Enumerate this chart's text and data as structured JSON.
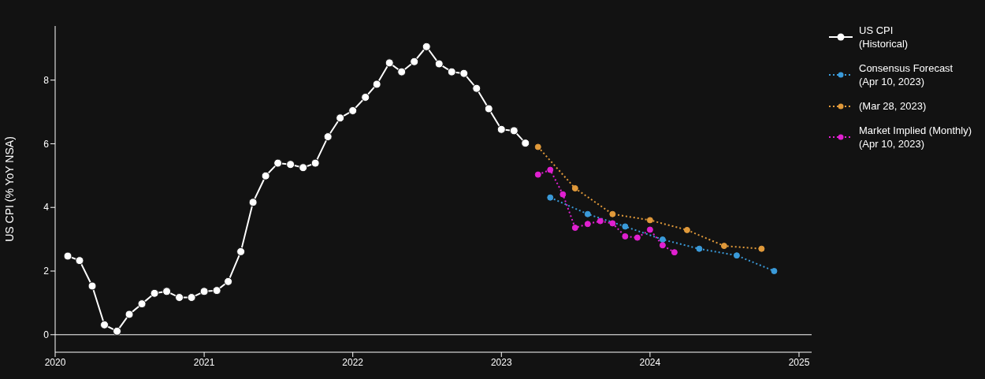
{
  "chart_data": {
    "type": "line",
    "ylabel": "US CPI (% YoY NSA)",
    "xlim": [
      "2020-01",
      "2025-02"
    ],
    "xticks": [
      "2020",
      "2021",
      "2022",
      "2023",
      "2024",
      "2025"
    ],
    "ylim": [
      -0.55,
      9.7
    ],
    "yticks": [
      0,
      2,
      4,
      6,
      8
    ],
    "grid": false,
    "legend": "top right",
    "marker": "circle",
    "ref_lines": [
      {
        "axis": "y",
        "value": 0,
        "color": "#ffffff"
      }
    ],
    "series": [
      {
        "name": "US CPI\n(Historical)",
        "color": "#ffffff",
        "line_style": "solid",
        "x": [
          "2020-02",
          "2020-03",
          "2020-04",
          "2020-05",
          "2020-06",
          "2020-07",
          "2020-08",
          "2020-09",
          "2020-10",
          "2020-11",
          "2020-12",
          "2021-01",
          "2021-02",
          "2021-03",
          "2021-04",
          "2021-05",
          "2021-06",
          "2021-07",
          "2021-08",
          "2021-09",
          "2021-10",
          "2021-11",
          "2021-12",
          "2022-01",
          "2022-02",
          "2022-03",
          "2022-04",
          "2022-05",
          "2022-06",
          "2022-07",
          "2022-08",
          "2022-09",
          "2022-10",
          "2022-11",
          "2022-12",
          "2023-01",
          "2023-02",
          "2023-03"
        ],
        "values": [
          2.47,
          2.33,
          1.53,
          0.31,
          0.11,
          0.64,
          0.97,
          1.3,
          1.36,
          1.17,
          1.17,
          1.36,
          1.39,
          1.67,
          2.61,
          4.16,
          4.99,
          5.39,
          5.35,
          5.25,
          5.39,
          6.22,
          6.81,
          7.04,
          7.46,
          7.87,
          8.54,
          8.26,
          8.58,
          9.05,
          8.51,
          8.26,
          8.21,
          7.74,
          7.1,
          6.45,
          6.41,
          6.02
        ]
      },
      {
        "name": "Consensus Forecast\n(Apr 10, 2023)",
        "color": "#3a9ad9",
        "line_style": "dotted",
        "x": [
          "2023-05",
          "2023-08",
          "2023-11",
          "2024-02",
          "2024-05",
          "2024-08",
          "2024-11"
        ],
        "values": [
          4.31,
          3.79,
          3.4,
          2.99,
          2.7,
          2.49,
          2.0
        ]
      },
      {
        "name": "(Mar 28, 2023)",
        "color": "#e0993a",
        "line_style": "dotted",
        "x": [
          "2023-04",
          "2023-07",
          "2023-10",
          "2024-01",
          "2024-04",
          "2024-07",
          "2024-10"
        ],
        "values": [
          5.9,
          4.6,
          3.79,
          3.6,
          3.29,
          2.79,
          2.7
        ]
      },
      {
        "name": "Market Implied (Monthly)\n(Apr 10, 2023)",
        "color": "#e020d0",
        "line_style": "dotted",
        "x": [
          "2023-04",
          "2023-05",
          "2023-06",
          "2023-07",
          "2023-08",
          "2023-09",
          "2023-10",
          "2023-11",
          "2023-12",
          "2024-01",
          "2024-02",
          "2024-03"
        ],
        "values": [
          5.03,
          5.18,
          4.41,
          3.36,
          3.48,
          3.57,
          3.5,
          3.09,
          3.05,
          3.3,
          2.81,
          2.59
        ]
      }
    ]
  }
}
